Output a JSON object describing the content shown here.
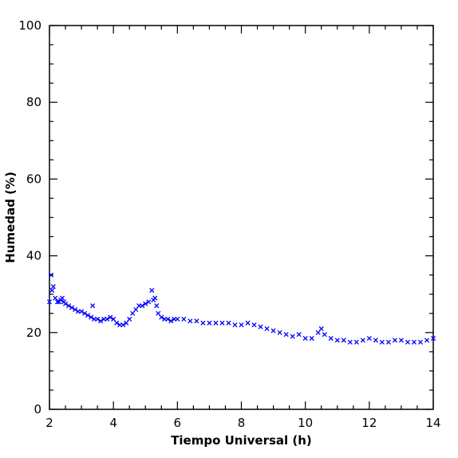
{
  "chart_data": {
    "type": "scatter",
    "title": "",
    "xlabel": "Tiempo Universal (h)",
    "ylabel": "Humedad (%)",
    "xlim": [
      2,
      14
    ],
    "ylim": [
      0,
      100
    ],
    "x_ticks": [
      2,
      4,
      6,
      8,
      10,
      12,
      14
    ],
    "y_ticks": [
      0,
      20,
      40,
      60,
      80,
      100
    ],
    "x_tick_labels": [
      "2",
      "4",
      "6",
      "8",
      "10",
      "12",
      "14"
    ],
    "y_tick_labels": [
      "0",
      "20",
      "40",
      "60",
      "80",
      "100"
    ],
    "marker": "x",
    "color": "#0000ff",
    "grid": false,
    "series": [
      {
        "x": [
          2.0,
          2.05,
          2.08,
          2.12,
          2.18,
          2.25,
          2.3,
          2.35,
          2.4,
          2.45,
          2.5,
          2.6,
          2.7,
          2.8,
          2.9,
          3.0,
          3.1,
          3.2,
          3.3,
          3.35,
          3.4,
          3.5,
          3.6,
          3.7,
          3.8,
          3.9,
          4.0,
          4.1,
          4.2,
          4.3,
          4.4,
          4.5,
          4.6,
          4.7,
          4.8,
          4.9,
          5.0,
          5.1,
          5.2,
          5.25,
          5.3,
          5.35,
          5.4,
          5.5,
          5.6,
          5.7,
          5.8,
          5.9,
          6.0,
          6.2,
          6.4,
          6.6,
          6.8,
          7.0,
          7.2,
          7.4,
          7.6,
          7.8,
          8.0,
          8.2,
          8.4,
          8.6,
          8.8,
          9.0,
          9.2,
          9.4,
          9.6,
          9.8,
          10.0,
          10.2,
          10.4,
          10.5,
          10.6,
          10.8,
          11.0,
          11.2,
          11.4,
          11.6,
          11.8,
          12.0,
          12.2,
          12.4,
          12.6,
          12.8,
          13.0,
          13.2,
          13.4,
          13.6,
          13.8,
          14.0
        ],
        "y": [
          28,
          35,
          31,
          32,
          29,
          28,
          28,
          28.5,
          29,
          28,
          27.5,
          27,
          26.5,
          26,
          25.5,
          25.5,
          25,
          24.5,
          24,
          27,
          23.5,
          23.5,
          23,
          23.5,
          23.5,
          24,
          23.5,
          22.5,
          22,
          22,
          22.5,
          23.5,
          25,
          26,
          27,
          27,
          27.5,
          28,
          31,
          28.5,
          29,
          27,
          25,
          24,
          23.5,
          23.5,
          23,
          23.5,
          23.5,
          23.5,
          23,
          23,
          22.5,
          22.5,
          22.5,
          22.5,
          22.5,
          22,
          22,
          22.5,
          22,
          21.5,
          21,
          20.5,
          20,
          19.5,
          19,
          19.5,
          18.5,
          18.5,
          20,
          21,
          19.5,
          18.5,
          18,
          18,
          17.5,
          17.5,
          18,
          18.5,
          18,
          17.5,
          17.5,
          18,
          18,
          17.5,
          17.5,
          17.5,
          18,
          18.5
        ]
      }
    ]
  }
}
